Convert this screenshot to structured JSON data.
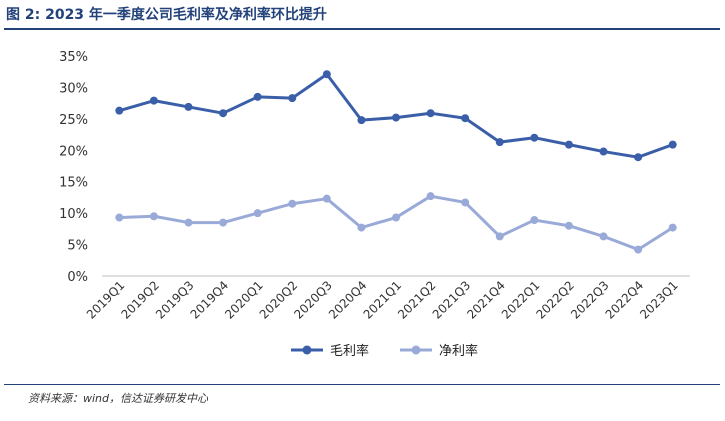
{
  "figure": {
    "title": "图 2:  2023 年一季度公司毛利率及净利率环比提升",
    "source": "资料来源：wind，信达证券研发中心"
  },
  "chart_data": {
    "type": "line",
    "categories": [
      "2019Q1",
      "2019Q2",
      "2019Q3",
      "2019Q4",
      "2020Q1",
      "2020Q2",
      "2020Q3",
      "2020Q4",
      "2021Q1",
      "2021Q2",
      "2021Q3",
      "2021Q4",
      "2022Q1",
      "2022Q2",
      "2022Q3",
      "2022Q4",
      "2023Q1"
    ],
    "y_ticks": [
      "0%",
      "5%",
      "10%",
      "15%",
      "20%",
      "25%",
      "30%",
      "35%"
    ],
    "ylim": [
      0,
      35
    ],
    "grid": false,
    "legend_position": "bottom",
    "series": [
      {
        "name": "毛利率",
        "color": "#3a5ea8",
        "values": [
          26.3,
          27.9,
          26.9,
          25.9,
          28.5,
          28.3,
          32.1,
          24.8,
          25.2,
          25.9,
          25.1,
          21.3,
          22.0,
          20.9,
          19.8,
          18.9,
          20.9
        ]
      },
      {
        "name": "净利率",
        "color": "#9aaad8",
        "values": [
          9.3,
          9.5,
          8.5,
          8.5,
          10.0,
          11.5,
          12.3,
          7.7,
          9.3,
          12.7,
          11.7,
          6.3,
          8.9,
          8.0,
          6.3,
          4.2,
          7.7
        ]
      }
    ]
  }
}
